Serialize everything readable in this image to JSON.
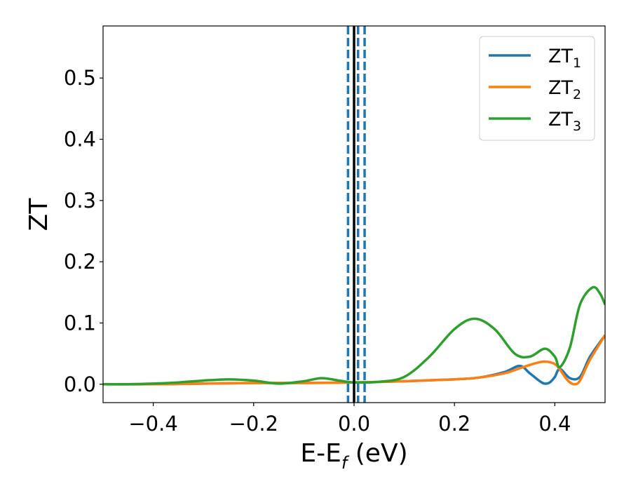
{
  "chart_data": {
    "type": "line",
    "title": "",
    "xlabel": {
      "main": "E-E",
      "sub": "f",
      "tail": " (eV)"
    },
    "ylabel": "ZT",
    "xlim": [
      -0.5,
      0.5
    ],
    "ylim": [
      -0.03,
      0.585
    ],
    "xticks": [
      -0.4,
      -0.2,
      0.0,
      0.2,
      0.4
    ],
    "xtick_labels": [
      "−0.4",
      "−0.2",
      "0.0",
      "0.2",
      "0.4"
    ],
    "yticks": [
      0.0,
      0.1,
      0.2,
      0.3,
      0.4,
      0.5
    ],
    "ytick_labels": [
      "0.0",
      "0.1",
      "0.2",
      "0.3",
      "0.4",
      "0.5"
    ],
    "grid": false,
    "legend_position": "top-right",
    "vlines": [
      {
        "x": 0.0,
        "color": "#000000",
        "style": "solid"
      },
      {
        "x": -0.012,
        "color": "#1f77b4",
        "style": "dashed"
      },
      {
        "x": 0.008,
        "color": "#1f77b4",
        "style": "dashed"
      },
      {
        "x": 0.021,
        "color": "#1f77b4",
        "style": "dashed"
      }
    ],
    "series": [
      {
        "name": "ZT1",
        "label_main": "ZT",
        "label_sub": "1",
        "color": "#1f77b4",
        "x": [
          -0.5,
          -0.4,
          -0.3,
          -0.2,
          -0.1,
          0.0,
          0.1,
          0.2,
          0.25,
          0.3,
          0.33,
          0.35,
          0.37,
          0.38,
          0.39,
          0.4,
          0.41,
          0.43,
          0.45,
          0.47,
          0.5
        ],
        "y": [
          0.0,
          0.0,
          0.001,
          0.002,
          0.002,
          0.003,
          0.005,
          0.008,
          0.011,
          0.02,
          0.03,
          0.018,
          0.005,
          0.001,
          0.003,
          0.012,
          0.025,
          0.01,
          0.012,
          0.045,
          0.08
        ]
      },
      {
        "name": "ZT2",
        "label_main": "ZT",
        "label_sub": "2",
        "color": "#ff7f0e",
        "x": [
          -0.5,
          -0.4,
          -0.3,
          -0.2,
          -0.1,
          0.0,
          0.1,
          0.2,
          0.25,
          0.3,
          0.33,
          0.36,
          0.38,
          0.4,
          0.41,
          0.42,
          0.43,
          0.44,
          0.45,
          0.47,
          0.5
        ],
        "y": [
          0.0,
          0.0,
          0.001,
          0.002,
          0.002,
          0.003,
          0.005,
          0.008,
          0.011,
          0.018,
          0.026,
          0.034,
          0.037,
          0.033,
          0.024,
          0.012,
          0.003,
          0.0,
          0.006,
          0.04,
          0.08
        ]
      },
      {
        "name": "ZT3",
        "label_main": "ZT",
        "label_sub": "3",
        "color": "#2ca02c",
        "x": [
          -0.5,
          -0.45,
          -0.4,
          -0.35,
          -0.3,
          -0.25,
          -0.2,
          -0.15,
          -0.1,
          -0.065,
          -0.03,
          0.0,
          0.05,
          0.1,
          0.15,
          0.2,
          0.24,
          0.28,
          0.32,
          0.35,
          0.38,
          0.4,
          0.41,
          0.43,
          0.45,
          0.475,
          0.49,
          0.5
        ],
        "y": [
          0.0,
          0.0,
          0.001,
          0.003,
          0.006,
          0.008,
          0.006,
          0.001,
          0.005,
          0.01,
          0.006,
          0.003,
          0.004,
          0.012,
          0.045,
          0.09,
          0.107,
          0.09,
          0.05,
          0.045,
          0.058,
          0.045,
          0.028,
          0.06,
          0.13,
          0.158,
          0.148,
          0.13
        ]
      }
    ]
  }
}
